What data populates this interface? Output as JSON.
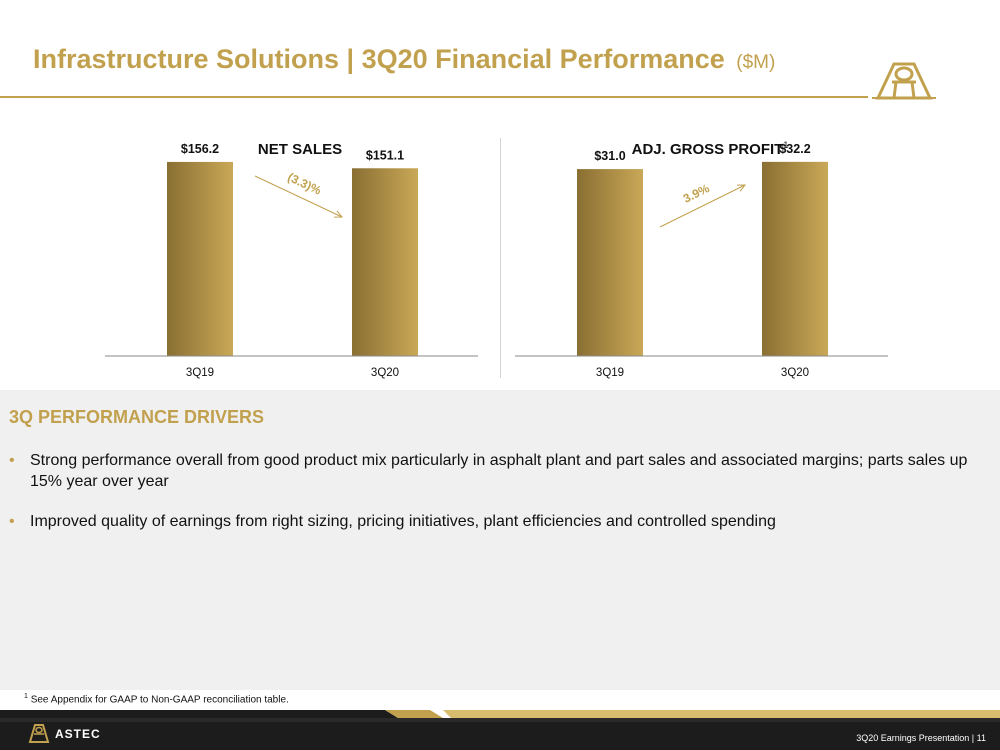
{
  "header": {
    "title": "Infrastructure Solutions | 3Q20 Financial Performance",
    "unit": "($M)"
  },
  "colors": {
    "accent": "#c2a14e",
    "footer_dark": "#1c1c1c"
  },
  "chart_data": [
    {
      "type": "bar",
      "title": "NET SALES",
      "footnote_marker": "",
      "categories": [
        "3Q19",
        "3Q20"
      ],
      "values": [
        156.2,
        151.1
      ],
      "value_labels": [
        "$156.2",
        "$151.1"
      ],
      "change_label": "(3.3)%",
      "change_direction": "down",
      "ylim": [
        0,
        165
      ]
    },
    {
      "type": "bar",
      "title": "ADJ. GROSS PROFIT",
      "footnote_marker": "1",
      "categories": [
        "3Q19",
        "3Q20"
      ],
      "values": [
        31.0,
        32.2
      ],
      "value_labels": [
        "$31.0",
        "$32.2"
      ],
      "change_label": "3.9%",
      "change_direction": "up",
      "ylim": [
        0,
        34
      ]
    }
  ],
  "drivers": {
    "heading": "3Q PERFORMANCE DRIVERS",
    "bullets": [
      "Strong performance overall from good product mix particularly in asphalt plant and part sales and associated margins; parts sales up 15% year over year",
      "Improved quality of earnings from right sizing, pricing initiatives, plant efficiencies and controlled spending"
    ]
  },
  "footnote": {
    "marker": "1",
    "text": "See Appendix for GAAP to Non-GAAP reconciliation table."
  },
  "footer": {
    "brand": "ASTEC",
    "right_text": "3Q20 Earnings Presentation |  11"
  }
}
